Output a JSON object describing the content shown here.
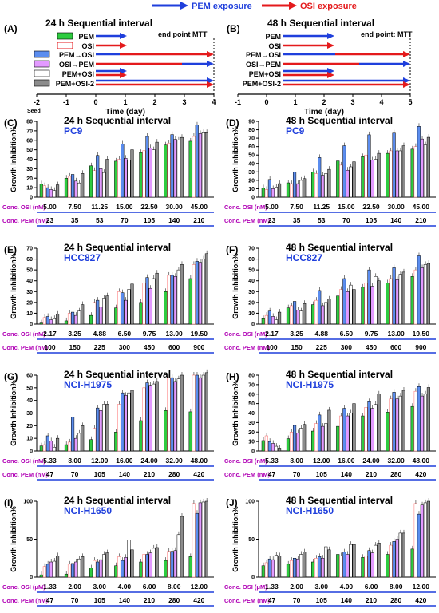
{
  "legend": {
    "items": [
      {
        "label": "PEM exposure",
        "color": "#1f3fdc"
      },
      {
        "label": "OSI exposure",
        "color": "#e41a1c"
      }
    ]
  },
  "colors": {
    "PEM": "#2ecc40",
    "OSI": "#ff6b6b",
    "PEM_OSI": "#5b8def",
    "OSI_PEM": "#e39aff",
    "PEM_plus_OSI": "#ffffff",
    "PEM_plus_OSI2": "#8c8c8c",
    "label_purple": "#b000b5",
    "label_blue": "#1f3fdc"
  },
  "schedule_panels": [
    {
      "letter": "(A)",
      "title": "24 h Sequential interval",
      "endpoint": "end point MTT",
      "xlabel": "Time (day)",
      "seed": "Seed",
      "ticks": [
        "-2",
        "-1",
        "0",
        "1",
        "2",
        "3",
        "4"
      ],
      "rows": [
        "PEM",
        "OSI",
        "PEM→OSI",
        "OSI→PEM",
        "PEM+OSI",
        "PEM+OSI-2"
      ]
    },
    {
      "letter": "(B)",
      "title": "48 h Sequential interval",
      "endpoint": "end point: MTT",
      "xlabel": "Time (day)",
      "ticks": [
        "-1",
        "0",
        "1",
        "2",
        "3",
        "4",
        "5"
      ],
      "rows": [
        "PEM",
        "OSI",
        "PEM→OSI",
        "OSI→PEM",
        "PEM+OSI",
        "PEM+OSI-2"
      ]
    }
  ],
  "bar_panels": [
    {
      "letter": "(C)",
      "title": "24 h Sequential interval",
      "cell": "PC9",
      "ylabel": "Growth Inhibition%",
      "yticks": [
        "0",
        "10",
        "20",
        "30",
        "40",
        "50",
        "60",
        "70",
        "80"
      ],
      "row1_label": "Conc. OSI (nM)",
      "row1": [
        "5.00",
        "7.50",
        "11.25",
        "15.00",
        "22.50",
        "30.00",
        "45.00"
      ],
      "row2_label": "Conc. PEM (nM)",
      "row2": [
        "23",
        "35",
        "53",
        "70",
        "105",
        "140",
        "210"
      ]
    },
    {
      "letter": "(D)",
      "title": "48 h Sequential interval",
      "cell": "PC9",
      "ylabel": "Growth Inhibition%",
      "yticks": [
        "0",
        "10",
        "20",
        "30",
        "40",
        "50",
        "60",
        "70",
        "80",
        "90"
      ],
      "row1_label": "Conc. OSI (nM)",
      "row1": [
        "5.00",
        "7.50",
        "11.25",
        "15.00",
        "22.50",
        "30.00",
        "45.00"
      ],
      "row2_label": "Conc. PEM (nM)",
      "row2": [
        "23",
        "35",
        "53",
        "70",
        "105",
        "140",
        "210"
      ]
    },
    {
      "letter": "(E)",
      "title": "24 h Sequential interval",
      "cell": "HCC827",
      "ylabel": "Growth Inhibition%",
      "yticks": [
        "0",
        "10",
        "20",
        "30",
        "40",
        "50",
        "60",
        "70"
      ],
      "row1_label": "Conc. OSI (nM)",
      "row1": [
        "2.17",
        "3.25",
        "4.88",
        "6.50",
        "9.75",
        "13.00",
        "19.50"
      ],
      "row2_label": "Conc. PEM (nM)",
      "row2": [
        "100",
        "150",
        "225",
        "300",
        "450",
        "600",
        "900"
      ]
    },
    {
      "letter": "(F)",
      "title": "48 h Sequential interval",
      "cell": "HCC827",
      "ylabel": "Growth Inhibition%",
      "yticks": [
        "0",
        "10",
        "20",
        "30",
        "40",
        "50",
        "60",
        "70"
      ],
      "row1_label": "Conc. OSI (nM)",
      "row1": [
        "2.17",
        "3.25",
        "4.88",
        "6.50",
        "9.75",
        "13.00",
        "19.50"
      ],
      "row2_label": "Conc. PEM (nM)",
      "row2": [
        "100",
        "150",
        "225",
        "300",
        "450",
        "600",
        "900"
      ]
    },
    {
      "letter": "(G)",
      "title": "24 h Sequential interval",
      "cell": "NCI-H1975",
      "ylabel": "Growth Inhibition%",
      "yticks": [
        "0",
        "10",
        "20",
        "30",
        "40",
        "50",
        "60"
      ],
      "row1_label": "Conc. OSI (nM)",
      "row1": [
        "5.33",
        "8.00",
        "12.00",
        "16.00",
        "24.00",
        "32.00",
        "48.00"
      ],
      "row2_label": "Conc. PEM (nM)",
      "row2": [
        "47",
        "70",
        "105",
        "140",
        "210",
        "280",
        "420"
      ]
    },
    {
      "letter": "(H)",
      "title": "48 h Sequential interval",
      "cell": "NCI-H1975",
      "ylabel": "Growth Inhibition%",
      "yticks": [
        "0",
        "10",
        "20",
        "30",
        "40",
        "50",
        "60",
        "70",
        "80"
      ],
      "row1_label": "Conc. OSI (nM)",
      "row1": [
        "5.33",
        "8.00",
        "12.00",
        "16.00",
        "24.00",
        "32.00",
        "48.00"
      ],
      "row2_label": "Conc. PEM (nM)",
      "row2": [
        "47",
        "70",
        "105",
        "140",
        "210",
        "280",
        "420"
      ]
    },
    {
      "letter": "(I)",
      "title": "24 h Sequential interval",
      "cell": "NCI-H1650",
      "ylabel": "Growth Inhibition%",
      "yticks": [
        "0",
        "50",
        "100"
      ],
      "row1_label": "Conc. OSI (μM)",
      "row1": [
        "1.33",
        "2.00",
        "3.00",
        "4.00",
        "6.00",
        "8.00",
        "12.00"
      ],
      "row2_label": "Conc. PEM (nM)",
      "row2": [
        "47",
        "70",
        "105",
        "140",
        "210",
        "280",
        "420"
      ]
    },
    {
      "letter": "(J)",
      "title": "48 h Sequential interval",
      "cell": "NCI-H1650",
      "ylabel": "Growth Inhibition%",
      "yticks": [
        "0",
        "50",
        "100"
      ],
      "row1_label": "Conc. OSI (μM)",
      "row1": [
        "1.33",
        "2.00",
        "3.00",
        "4.00",
        "6.00",
        "8.00",
        "12.00"
      ],
      "row2_label": "Conc. PEM (nM)",
      "row2": [
        "47",
        "70",
        "105",
        "140",
        "210",
        "280",
        "420"
      ]
    }
  ],
  "chart_data": [
    {
      "panel": "(C)",
      "type": "bar",
      "title": "24 h Sequential interval",
      "ylabel": "Growth Inhibition%",
      "ylim": [
        0,
        80
      ],
      "series": [
        {
          "name": "PEM",
          "values": [
            14,
            20,
            33,
            38,
            47,
            55,
            59
          ]
        },
        {
          "name": "OSI",
          "values": [
            12,
            22,
            28,
            40,
            49,
            57,
            64
          ]
        },
        {
          "name": "PEM→OSI",
          "values": [
            10,
            24,
            44,
            56,
            64,
            66,
            76
          ]
        },
        {
          "name": "OSI→PEM",
          "values": [
            8,
            17,
            30,
            41,
            52,
            61,
            67
          ]
        },
        {
          "name": "PEM+OSI",
          "values": [
            7,
            15,
            26,
            39,
            50,
            60,
            68
          ]
        },
        {
          "name": "PEM+OSI-2",
          "values": [
            13,
            25,
            40,
            50,
            58,
            63,
            68
          ]
        }
      ]
    },
    {
      "panel": "(D)",
      "type": "bar",
      "title": "48 h Sequential interval",
      "ylabel": "Growth Inhibition%",
      "ylim": [
        0,
        90
      ],
      "series": [
        {
          "name": "PEM",
          "values": [
            11,
            17,
            30,
            43,
            48,
            52,
            57
          ]
        },
        {
          "name": "OSI",
          "values": [
            9,
            16,
            28,
            38,
            50,
            55,
            60
          ]
        },
        {
          "name": "PEM→OSI",
          "values": [
            21,
            30,
            47,
            61,
            74,
            76,
            84
          ]
        },
        {
          "name": "OSI→PEM",
          "values": [
            10,
            16,
            26,
            32,
            44,
            55,
            69
          ]
        },
        {
          "name": "PEM+OSI",
          "values": [
            12,
            20,
            28,
            36,
            45,
            55,
            62
          ]
        },
        {
          "name": "PEM+OSI-2",
          "values": [
            16,
            22,
            33,
            42,
            52,
            61,
            71
          ]
        }
      ]
    },
    {
      "panel": "(E)",
      "type": "bar",
      "title": "24 h Sequential interval",
      "ylabel": "Growth Inhibition%",
      "ylim": [
        0,
        70
      ],
      "series": [
        {
          "name": "PEM",
          "values": [
            1,
            3,
            8,
            15,
            20,
            30,
            42
          ]
        },
        {
          "name": "OSI",
          "values": [
            6,
            10,
            20,
            30,
            38,
            45,
            55
          ]
        },
        {
          "name": "PEM→OSI",
          "values": [
            7,
            11,
            22,
            29,
            43,
            45,
            58
          ]
        },
        {
          "name": "OSI→PEM",
          "values": [
            4,
            8,
            16,
            22,
            33,
            44,
            57
          ]
        },
        {
          "name": "PEM+OSI",
          "values": [
            5,
            12,
            24,
            32,
            42,
            50,
            60
          ]
        },
        {
          "name": "PEM+OSI-2",
          "values": [
            9,
            18,
            26,
            37,
            47,
            55,
            65
          ]
        }
      ]
    },
    {
      "panel": "(F)",
      "type": "bar",
      "title": "48 h Sequential interval",
      "ylabel": "Growth Inhibition%",
      "ylim": [
        0,
        70
      ],
      "series": [
        {
          "name": "PEM",
          "values": [
            5,
            15,
            18,
            26,
            34,
            38,
            44
          ]
        },
        {
          "name": "OSI",
          "values": [
            8,
            17,
            22,
            32,
            38,
            42,
            50
          ]
        },
        {
          "name": "PEM→OSI",
          "values": [
            12,
            21,
            31,
            42,
            50,
            52,
            63
          ]
        },
        {
          "name": "OSI→PEM",
          "values": [
            7,
            13,
            17,
            30,
            35,
            41,
            52
          ]
        },
        {
          "name": "PEM+OSI",
          "values": [
            4,
            12,
            20,
            36,
            44,
            46,
            55
          ]
        },
        {
          "name": "PEM+OSI-2",
          "values": [
            11,
            19,
            23,
            32,
            40,
            48,
            56
          ]
        }
      ]
    },
    {
      "panel": "(G)",
      "type": "bar",
      "title": "24 h Sequential interval",
      "ylabel": "Growth Inhibition%",
      "ylim": [
        0,
        60
      ],
      "series": [
        {
          "name": "PEM",
          "values": [
            4,
            5,
            9,
            15,
            24,
            32,
            31
          ]
        },
        {
          "name": "OSI",
          "values": [
            5,
            7,
            18,
            37,
            50,
            58,
            60
          ]
        },
        {
          "name": "PEM→OSI",
          "values": [
            12,
            27,
            34,
            46,
            54,
            58,
            60
          ]
        },
        {
          "name": "OSI→PEM",
          "values": [
            8,
            10,
            32,
            44,
            52,
            55,
            58
          ]
        },
        {
          "name": "PEM+OSI",
          "values": [
            3,
            14,
            37,
            46,
            53,
            57,
            60
          ]
        },
        {
          "name": "PEM+OSI-2",
          "values": [
            10,
            20,
            37,
            48,
            55,
            60,
            62
          ]
        }
      ]
    },
    {
      "panel": "(H)",
      "type": "bar",
      "title": "48 h Sequential interval",
      "ylabel": "Growth Inhibition%",
      "ylim": [
        0,
        80
      ],
      "series": [
        {
          "name": "PEM",
          "values": [
            11,
            13,
            21,
            26,
            37,
            41,
            47
          ]
        },
        {
          "name": "OSI",
          "values": [
            16,
            20,
            29,
            37,
            46,
            55,
            63
          ]
        },
        {
          "name": "PEM→OSI",
          "values": [
            10,
            27,
            38,
            45,
            52,
            62,
            68
          ]
        },
        {
          "name": "OSI→PEM",
          "values": [
            8,
            19,
            26,
            37,
            45,
            55,
            58
          ]
        },
        {
          "name": "PEM+OSI",
          "values": [
            5,
            24,
            29,
            40,
            49,
            58,
            60
          ]
        },
        {
          "name": "PEM+OSI-2",
          "values": [
            3,
            28,
            43,
            50,
            60,
            64,
            67
          ]
        }
      ]
    },
    {
      "panel": "(I)",
      "type": "bar",
      "title": "24 h Sequential interval",
      "ylabel": "Growth Inhibition%",
      "ylim": [
        0,
        100
      ],
      "series": [
        {
          "name": "PEM",
          "values": [
            3,
            4,
            12,
            15,
            20,
            22,
            27
          ]
        },
        {
          "name": "OSI",
          "values": [
            14,
            17,
            22,
            27,
            30,
            34,
            97
          ]
        },
        {
          "name": "PEM→OSI",
          "values": [
            17,
            18,
            20,
            22,
            30,
            34,
            84
          ]
        },
        {
          "name": "OSI→PEM",
          "values": [
            20,
            20,
            23,
            26,
            32,
            35,
            98
          ]
        },
        {
          "name": "PEM+OSI",
          "values": [
            21,
            24,
            30,
            49,
            38,
            56,
            99
          ]
        },
        {
          "name": "PEM+OSI-2",
          "values": [
            28,
            27,
            32,
            36,
            39,
            80,
            100
          ]
        }
      ]
    },
    {
      "panel": "(J)",
      "type": "bar",
      "title": "48 h Sequential interval",
      "ylabel": "Growth Inhibition%",
      "ylim": [
        0,
        100
      ],
      "series": [
        {
          "name": "PEM",
          "values": [
            15,
            17,
            20,
            30,
            26,
            30,
            37
          ]
        },
        {
          "name": "OSI",
          "values": [
            19,
            22,
            25,
            28,
            28,
            42,
            97
          ]
        },
        {
          "name": "PEM→OSI",
          "values": [
            24,
            25,
            27,
            33,
            35,
            47,
            83
          ]
        },
        {
          "name": "OSI→PEM",
          "values": [
            23,
            24,
            25,
            30,
            32,
            50,
            95
          ]
        },
        {
          "name": "PEM+OSI",
          "values": [
            29,
            30,
            40,
            43,
            42,
            58,
            98
          ]
        },
        {
          "name": "PEM+OSI-2",
          "values": [
            28,
            33,
            36,
            43,
            45,
            58,
            100
          ]
        }
      ]
    }
  ]
}
